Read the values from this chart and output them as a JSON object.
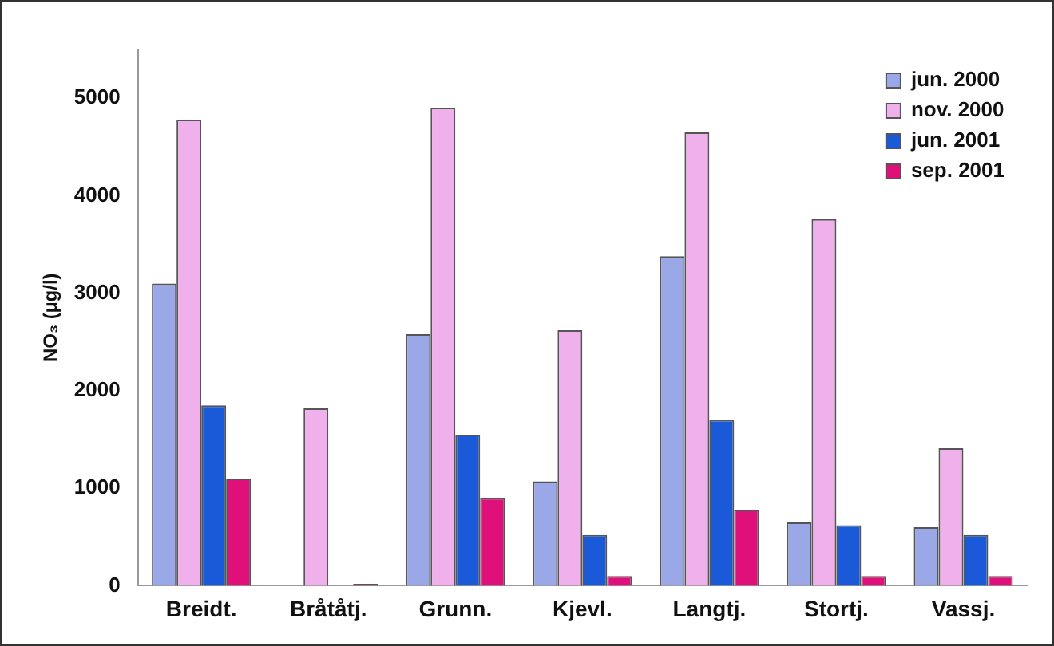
{
  "chart_data": {
    "type": "bar",
    "ylabel": "NO₃ (µg/l)",
    "categories": [
      "Breidt.",
      "Bråtåtj.",
      "Grunn.",
      "Kjevl.",
      "Langtj.",
      "Stortj.",
      "Vassj."
    ],
    "series": [
      {
        "name": "jun. 2000",
        "color": "#9aa8e8",
        "values": [
          3100,
          null,
          2580,
          1070,
          3380,
          650,
          600
        ]
      },
      {
        "name": "nov. 2000",
        "color": "#f0b0ec",
        "values": [
          4780,
          1820,
          4900,
          2620,
          4650,
          3760,
          1410
        ]
      },
      {
        "name": "jun. 2001",
        "color": "#1a5ad8",
        "values": [
          1850,
          null,
          1550,
          520,
          1700,
          620,
          520
        ]
      },
      {
        "name": "sep. 2001",
        "color": "#e0107a",
        "values": [
          1100,
          20,
          900,
          100,
          780,
          100,
          100
        ]
      }
    ],
    "ylim": [
      0,
      5500
    ],
    "yticks": [
      0,
      1000,
      2000,
      3000,
      4000,
      5000
    ],
    "grid": false,
    "legend": "top right"
  }
}
